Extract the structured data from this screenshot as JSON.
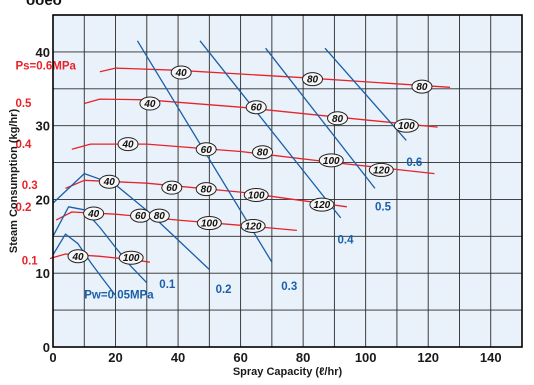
{
  "chart_data": {
    "type": "line",
    "title": "",
    "header_text": "ooeo",
    "xlabel": "Spray Capacity (ℓ/hr)",
    "ylabel": "Steam Consumption (kg/hr)",
    "xlim": [
      0,
      150
    ],
    "ylim": [
      0,
      45
    ],
    "x_ticks": [
      0,
      20,
      40,
      60,
      80,
      100,
      120,
      140
    ],
    "y_ticks": [
      0,
      10,
      20,
      30,
      40
    ],
    "grid": true,
    "colors": {
      "background": "#e9f2fb",
      "grid": "#2a2a2a",
      "steam_series": "#e8232a",
      "water_series": "#1a5fa8",
      "oval_fill": "#f6f6f6"
    },
    "steam_pressure_series": [
      {
        "name": "Ps=0.6MPa",
        "label_at": [
          -12,
          37.6
        ],
        "x": [
          15,
          20,
          40,
          80,
          127
        ],
        "y": [
          37.3,
          37.8,
          37.5,
          36.5,
          35.2
        ]
      },
      {
        "name": "0.5",
        "label_at": [
          -12,
          32.5
        ],
        "x": [
          10,
          15,
          30,
          60,
          90,
          123
        ],
        "y": [
          33.0,
          33.6,
          33.5,
          32.5,
          31.2,
          29.8
        ]
      },
      {
        "name": "0.4",
        "label_at": [
          -12,
          27.0
        ],
        "x": [
          6,
          12,
          30,
          60,
          90,
          122
        ],
        "y": [
          26.8,
          27.5,
          27.5,
          26.5,
          25.0,
          23.5
        ]
      },
      {
        "name": "0.3",
        "label_at": [
          -10,
          21.4
        ],
        "x": [
          4,
          10,
          30,
          60,
          94
        ],
        "y": [
          21.5,
          22.6,
          22.2,
          21.0,
          19.0
        ]
      },
      {
        "name": "0.2",
        "label_at": [
          -12,
          18.4
        ],
        "x": [
          1,
          6,
          20,
          40,
          60,
          78
        ],
        "y": [
          17.2,
          18.3,
          18.0,
          17.2,
          16.5,
          15.8
        ]
      },
      {
        "name": "0.1",
        "label_at": [
          -10,
          11.2
        ],
        "x": [
          -1,
          4,
          15,
          26,
          31
        ],
        "y": [
          12.0,
          12.6,
          12.3,
          11.8,
          11.5
        ]
      }
    ],
    "water_pressure_series": [
      {
        "name": "Pw=0.05MPa",
        "label_at": [
          10,
          6.6
        ],
        "x": [
          0,
          4,
          8,
          12,
          16,
          20
        ],
        "y": [
          12.5,
          15.3,
          14.0,
          11.5,
          9.2,
          7.0
        ]
      },
      {
        "name": "0.1",
        "label_at": [
          34,
          8.0
        ],
        "x": [
          0,
          5,
          10,
          15,
          20,
          25,
          30
        ],
        "y": [
          15.0,
          19.0,
          18.6,
          16.2,
          13.5,
          10.9,
          8.7
        ]
      },
      {
        "name": "0.2",
        "label_at": [
          52,
          7.3
        ],
        "x": [
          0,
          10,
          20,
          30,
          40,
          50
        ],
        "y": [
          19.5,
          23.5,
          22.0,
          18.5,
          14.5,
          10.5
        ]
      },
      {
        "name": "0.3",
        "label_at": [
          73,
          7.7
        ],
        "x": [
          27,
          70
        ],
        "y": [
          41.5,
          11.5
        ]
      },
      {
        "name": "0.4",
        "label_at": [
          91,
          14.0
        ],
        "x": [
          47,
          92
        ],
        "y": [
          41.5,
          17.5
        ]
      },
      {
        "name": "0.5",
        "label_at": [
          103,
          18.5
        ],
        "x": [
          68,
          103
        ],
        "y": [
          40.5,
          21.5
        ]
      },
      {
        "name": "0.6",
        "label_at": [
          113,
          24.5
        ],
        "x": [
          87,
          113
        ],
        "y": [
          40.5,
          28.0
        ]
      }
    ],
    "air_consumption_labels": [
      {
        "text": "40",
        "x": 41,
        "y": 37.2
      },
      {
        "text": "80",
        "x": 83,
        "y": 36.3
      },
      {
        "text": "80",
        "x": 118,
        "y": 35.3
      },
      {
        "text": "40",
        "x": 31,
        "y": 33.0
      },
      {
        "text": "60",
        "x": 65,
        "y": 32.5
      },
      {
        "text": "80",
        "x": 91,
        "y": 31.0
      },
      {
        "text": "100",
        "x": 113,
        "y": 30.0
      },
      {
        "text": "40",
        "x": 24,
        "y": 27.5
      },
      {
        "text": "60",
        "x": 49,
        "y": 26.8
      },
      {
        "text": "80",
        "x": 67,
        "y": 26.4
      },
      {
        "text": "100",
        "x": 89,
        "y": 25.3
      },
      {
        "text": "120",
        "x": 105,
        "y": 24.0
      },
      {
        "text": "40",
        "x": 18,
        "y": 22.4
      },
      {
        "text": "60",
        "x": 38,
        "y": 21.6
      },
      {
        "text": "80",
        "x": 49,
        "y": 21.4
      },
      {
        "text": "100",
        "x": 65,
        "y": 20.6
      },
      {
        "text": "120",
        "x": 86,
        "y": 19.3
      },
      {
        "text": "40",
        "x": 13,
        "y": 18.1
      },
      {
        "text": "60",
        "x": 28,
        "y": 17.8
      },
      {
        "text": "80",
        "x": 34,
        "y": 17.8
      },
      {
        "text": "100",
        "x": 50,
        "y": 16.8
      },
      {
        "text": "120",
        "x": 64,
        "y": 16.4
      },
      {
        "text": "40",
        "x": 8,
        "y": 12.3
      },
      {
        "text": "100",
        "x": 25,
        "y": 12.1
      }
    ]
  }
}
